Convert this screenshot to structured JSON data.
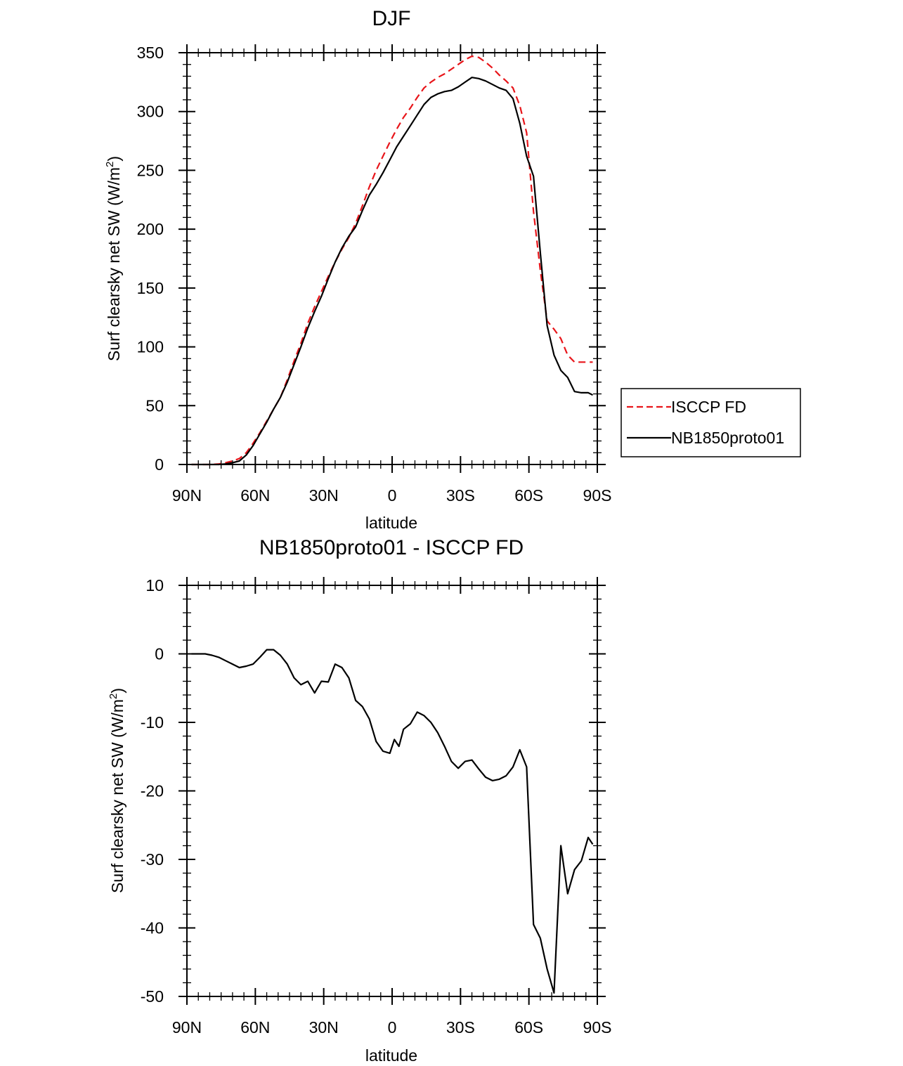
{
  "chart_data": [
    {
      "type": "line",
      "title": "DJF",
      "xlabel": "latitude",
      "ylabel": "Surf clearsky net SW (W/m",
      "ylabel_superscript": "2",
      "ylabel_close": ")",
      "x_ticks": [
        {
          "value": -90,
          "label": "90N"
        },
        {
          "value": -60,
          "label": "60N"
        },
        {
          "value": -30,
          "label": "30N"
        },
        {
          "value": 0,
          "label": "0"
        },
        {
          "value": 30,
          "label": "30S"
        },
        {
          "value": 60,
          "label": "60S"
        },
        {
          "value": 90,
          "label": "90S"
        }
      ],
      "xlim": [
        -90,
        90
      ],
      "ylim": [
        0,
        350
      ],
      "y_ticks": [
        0,
        50,
        100,
        150,
        200,
        250,
        300,
        350
      ],
      "y_tick_labels": [
        "0",
        "50",
        "100",
        "150",
        "200",
        "250",
        "300",
        "350"
      ],
      "legend_position": "right",
      "series": [
        {
          "name": "ISCCP FD",
          "color": "#e8151a",
          "dash": "dashed",
          "x": [
            -88,
            -85,
            -82,
            -79,
            -76,
            -73,
            -70,
            -67,
            -64,
            -61,
            -58,
            -55,
            -52,
            -49,
            -46,
            -43,
            -40,
            -37,
            -34,
            -31,
            -28,
            -25,
            -22,
            -19,
            -16,
            -13,
            -10,
            -7,
            -4,
            -1,
            2,
            5,
            8,
            11,
            14,
            17,
            20,
            23,
            26,
            29,
            32,
            35,
            38,
            41,
            44,
            47,
            50,
            53,
            56,
            59,
            62,
            65,
            68,
            71,
            74,
            77,
            80,
            83,
            86,
            88
          ],
          "values": [
            0,
            0,
            0,
            0,
            0.5,
            1.5,
            3,
            5,
            10,
            18,
            27,
            37,
            47,
            57,
            72,
            88,
            103,
            120,
            134,
            147,
            160,
            172,
            183,
            193,
            205,
            220,
            236,
            250,
            262,
            274,
            285,
            295,
            303,
            312,
            320,
            325,
            329,
            332,
            336,
            340,
            344,
            347,
            346,
            342,
            337,
            331,
            326,
            320,
            305,
            282,
            215,
            165,
            122,
            115,
            107,
            93,
            87,
            87,
            87,
            87
          ],
          "x_clean": [
            -88,
            -85,
            -82,
            -79,
            -76,
            -73,
            -70,
            -67,
            -64,
            -61,
            -58,
            -55,
            -52,
            -49,
            -46,
            -43,
            -40,
            -37,
            -34,
            -31,
            -28,
            -25,
            -22,
            -19,
            -16,
            -13,
            -10,
            -7,
            -4,
            -1,
            2,
            5,
            8,
            11,
            14,
            17,
            20,
            23,
            26,
            29,
            32,
            35,
            38,
            41,
            44,
            47,
            50,
            53,
            56,
            59,
            62,
            65,
            68,
            71,
            74,
            77,
            80,
            83,
            86,
            88
          ]
        },
        {
          "name": "NB1850proto01",
          "color": "#000000",
          "dash": "solid",
          "x": [
            -88,
            -85,
            -82,
            -79,
            -76,
            -73,
            -70,
            -67,
            -64,
            -61,
            -58,
            -55,
            -52,
            -49,
            -46,
            -43,
            -40,
            -37,
            -34,
            -31,
            -28,
            -25,
            -22,
            -19,
            -16,
            -13,
            -10,
            -7,
            -4,
            -1,
            2,
            5,
            8,
            11,
            14,
            17,
            20,
            23,
            26,
            29,
            32,
            35,
            38,
            41,
            44,
            47,
            50,
            53,
            56,
            59,
            62,
            65,
            68,
            71,
            74,
            77,
            80,
            83,
            86,
            88
          ],
          "values": [
            0,
            0,
            0,
            0,
            0,
            0.5,
            1.5,
            3,
            8,
            16,
            26,
            36,
            47,
            57,
            70,
            85,
            100,
            116,
            130,
            143,
            158,
            172,
            184,
            194,
            202,
            216,
            229,
            238,
            248,
            259,
            270,
            279,
            288,
            297,
            306,
            312,
            315,
            317,
            318,
            321,
            325,
            329,
            328,
            326,
            323,
            320,
            318,
            311,
            290,
            262,
            245,
            180,
            118,
            93,
            80,
            74,
            62,
            61,
            61,
            59
          ],
          "x_clean": [
            -88,
            -85,
            -82,
            -79,
            -76,
            -73,
            -70,
            -67,
            -64,
            -61,
            -58,
            -55,
            -52,
            -49,
            -46,
            -43,
            -40,
            -37,
            -34,
            -31,
            -28,
            -25,
            -22,
            -19,
            -16,
            -13,
            -10,
            -7,
            -4,
            -1,
            2,
            5,
            8,
            11,
            14,
            17,
            20,
            23,
            26,
            29,
            32,
            35,
            38,
            41,
            44,
            47,
            50,
            53,
            56,
            59,
            62,
            65,
            68,
            71,
            74,
            77,
            80,
            83,
            86,
            88
          ]
        }
      ]
    },
    {
      "type": "line",
      "title": "NB1850proto01 - ISCCP FD",
      "xlabel": "latitude",
      "ylabel": "Surf clearsky net SW (W/m",
      "ylabel_superscript": "2",
      "ylabel_close": ")",
      "x_ticks": [
        {
          "value": -90,
          "label": "90N"
        },
        {
          "value": -60,
          "label": "60N"
        },
        {
          "value": -30,
          "label": "30N"
        },
        {
          "value": 0,
          "label": "0"
        },
        {
          "value": 30,
          "label": "30S"
        },
        {
          "value": 60,
          "label": "60S"
        },
        {
          "value": 90,
          "label": "90S"
        }
      ],
      "xlim": [
        -90,
        90
      ],
      "ylim": [
        -50,
        10
      ],
      "y_ticks": [
        -50,
        -40,
        -30,
        -20,
        -10,
        0,
        10
      ],
      "y_tick_labels": [
        "-50",
        "-40",
        "-30",
        "-20",
        "-10",
        "0",
        "10"
      ],
      "series": [
        {
          "name": "NB1850proto01 - ISCCP FD",
          "color": "#000000",
          "dash": "solid",
          "x": [
            -88,
            -85,
            -82,
            -79,
            -76,
            -73,
            -70,
            -67,
            -64,
            -61,
            -58,
            -55,
            -52,
            -49,
            -46,
            -43,
            -40,
            -37,
            -34,
            -31,
            -28,
            -25,
            -22,
            -19,
            -16,
            -13,
            -10,
            -7,
            -4,
            -1,
            1,
            3,
            5,
            8,
            11,
            14,
            17,
            20,
            23,
            26,
            29,
            32,
            35,
            38,
            41,
            44,
            47,
            50,
            53,
            56,
            59,
            62,
            65,
            68,
            71,
            74,
            77,
            80,
            83,
            86,
            88
          ],
          "values": [
            0,
            0,
            0,
            -0.2,
            -0.5,
            -1,
            -1.5,
            -2,
            -1.8,
            -1.5,
            -0.5,
            0.6,
            0.6,
            -0.2,
            -1.5,
            -3.5,
            -4.5,
            -4,
            -5.7,
            -4,
            -4.1,
            -1.5,
            -2,
            -3.5,
            -6.8,
            -7.7,
            -9.5,
            -12.8,
            -14.2,
            -14.5,
            -12.5,
            -13.5,
            -11,
            -10.2,
            -8.5,
            -9,
            -10,
            -11.5,
            -13.5,
            -15.7,
            -16.7,
            -15.7,
            -15.5,
            -16.8,
            -18,
            -18.5,
            -18.3,
            -17.8,
            -16.5,
            -14,
            -16.5,
            -39.5,
            -41.5,
            -46,
            -49.5,
            -28,
            -35,
            -31.5,
            -30.2,
            -26.8,
            -27.8
          ]
        }
      ]
    }
  ]
}
